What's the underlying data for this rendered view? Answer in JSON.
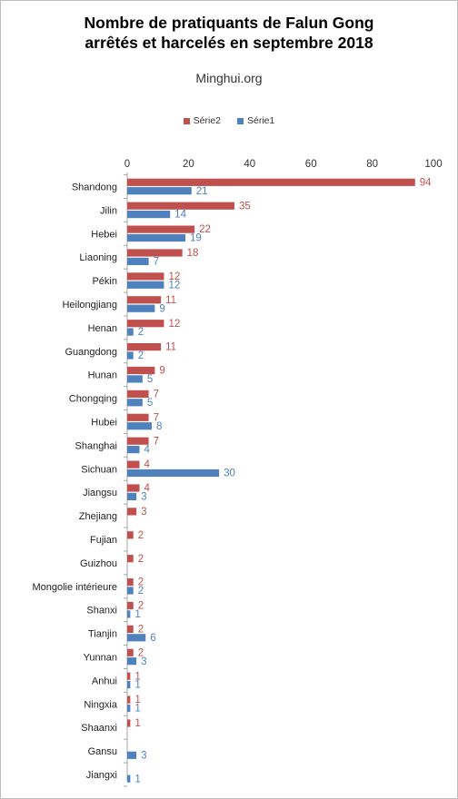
{
  "chart_data": {
    "type": "bar",
    "orientation": "horizontal",
    "title": [
      "Nombre de pratiquants de Falun Gong",
      "arrêtés et harcelés en septembre 2018"
    ],
    "subtitle": "Minghui.org",
    "legend_position": "top",
    "xlim": [
      0,
      100
    ],
    "xticks": [
      0,
      20,
      40,
      60,
      80,
      100
    ],
    "grid": false,
    "categories": [
      "Shandong",
      "Jilin",
      "Hebei",
      "Liaoning",
      "Pékin",
      "Heilongjiang",
      "Henan",
      "Guangdong",
      "Hunan",
      "Chongqing",
      "Hubei",
      "Shanghai",
      "Sichuan",
      "Jiangsu",
      "Zhejiang",
      "Fujian",
      "Guizhou",
      "Mongolie intérieure",
      "Shanxi",
      "Tianjin",
      "Yunnan",
      "Anhui",
      "Ningxia",
      "Shaanxi",
      "Gansu",
      "Jiangxi"
    ],
    "series": [
      {
        "name": "Série2",
        "color": "#c0504d",
        "values": [
          94,
          35,
          22,
          18,
          12,
          11,
          12,
          11,
          9,
          7,
          7,
          7,
          4,
          4,
          3,
          2,
          2,
          2,
          2,
          2,
          2,
          1,
          1,
          1,
          null,
          null
        ]
      },
      {
        "name": "Série1",
        "color": "#4f81bd",
        "values": [
          21,
          14,
          19,
          7,
          12,
          9,
          2,
          2,
          5,
          5,
          8,
          4,
          30,
          3,
          null,
          null,
          null,
          2,
          1,
          6,
          3,
          1,
          1,
          null,
          3,
          1
        ]
      }
    ]
  }
}
